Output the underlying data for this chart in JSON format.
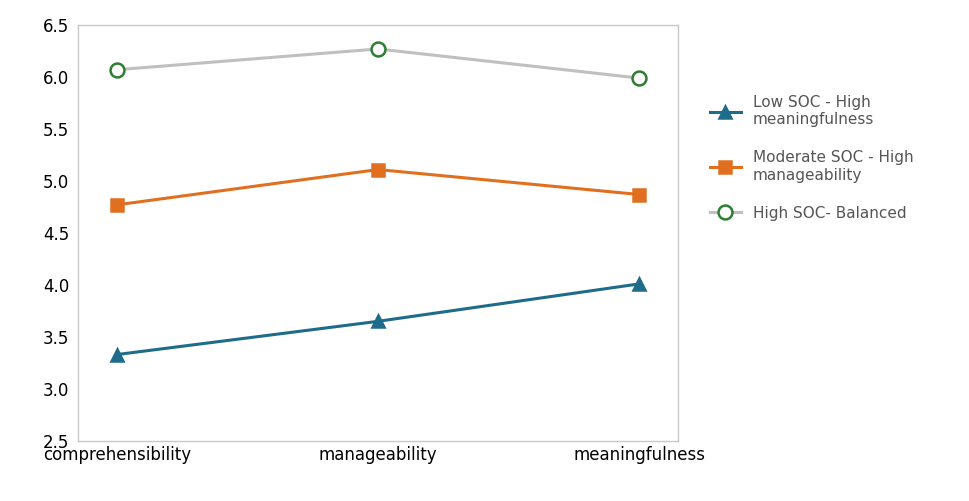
{
  "x_labels": [
    "comprehensibility",
    "manageability",
    "meaningfulness"
  ],
  "series": [
    {
      "name": "Low SOC - High\nmeaningfulness",
      "values": [
        3.33,
        3.65,
        4.01
      ],
      "color": "#1f6b8a",
      "marker": "^",
      "marker_facecolor": "#1f6b8a",
      "marker_edgecolor": "#1f6b8a",
      "linewidth": 2.2,
      "markersize": 8
    },
    {
      "name": "Moderate SOC - High\nmanageability",
      "values": [
        4.77,
        5.11,
        4.87
      ],
      "color": "#e07020",
      "marker": "s",
      "marker_facecolor": "#e07020",
      "marker_edgecolor": "#e07020",
      "linewidth": 2.2,
      "markersize": 8
    },
    {
      "name": "High SOC- Balanced",
      "values": [
        6.07,
        6.27,
        5.99
      ],
      "color": "#c0c0c0",
      "marker": "o",
      "marker_facecolor": "#ffffff",
      "marker_edgecolor": "#2e7d32",
      "linewidth": 2.2,
      "markersize": 10
    }
  ],
  "ylim": [
    2.5,
    6.5
  ],
  "yticks": [
    2.5,
    3.0,
    3.5,
    4.0,
    4.5,
    5.0,
    5.5,
    6.0,
    6.5
  ],
  "tick_fontsize": 12,
  "legend_fontsize": 11,
  "legend_text_color": "#555555",
  "figure_bg": "#ffffff",
  "axes_bg": "#ffffff",
  "plot_box_color": "#c8c8c8"
}
